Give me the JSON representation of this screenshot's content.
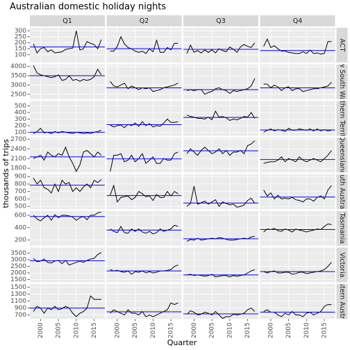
{
  "chart_data": {
    "type": "line",
    "title": "Australian domestic holiday nights",
    "xlabel": "Quarter",
    "ylabel": "thousands of trips",
    "line_color": "#000000",
    "mean_color": "#0000ff",
    "grid": true,
    "columns": [
      "Q1",
      "Q2",
      "Q3",
      "Q4"
    ],
    "x": [
      1998,
      1999,
      2000,
      2001,
      2002,
      2003,
      2004,
      2005,
      2006,
      2007,
      2008,
      2009,
      2010,
      2011,
      2012,
      2013,
      2014,
      2015,
      2016,
      2017
    ],
    "xlim": [
      1997,
      2018
    ],
    "xticks": [
      2000,
      2005,
      2010,
      2015
    ],
    "rows": [
      {
        "name": "ACT",
        "ylim": [
          35,
          325
        ],
        "yticks": [
          100,
          150,
          200,
          250,
          300
        ],
        "panels": [
          {
            "mean": 165,
            "values": [
              190,
              115,
              150,
              160,
              125,
              140,
              115,
              120,
              125,
              145,
              150,
              155,
              300,
              140,
              150,
              210,
              195,
              185,
              150,
              225
            ]
          },
          {
            "mean": 150,
            "values": [
              130,
              130,
              170,
              250,
              190,
              160,
              150,
              130,
              120,
              130,
              110,
              150,
              125,
              220,
              120,
              120,
              160,
              140,
              195,
              195
            ]
          },
          {
            "mean": 145,
            "values": [
              110,
              180,
              120,
              135,
              115,
              140,
              120,
              140,
              115,
              150,
              135,
              125,
              165,
              145,
              120,
              165,
              185,
              170,
              160,
              200
            ]
          },
          {
            "mean": 135,
            "values": [
              170,
              230,
              160,
              175,
              150,
              130,
              130,
              120,
              115,
              110,
              110,
              125,
              110,
              140,
              110,
              115,
              105,
              110,
              210,
              210
            ]
          }
        ]
      },
      {
        "name": "New South Wales",
        "ylim": [
          2240,
          4110
        ],
        "yticks": [
          2500,
          3000,
          3500,
          4000
        ],
        "panels": [
          {
            "mean": 3500,
            "values": [
              4050,
              3650,
              3550,
              3500,
              3450,
              3400,
              3450,
              3550,
              3250,
              3300,
              3500,
              3250,
              3300,
              3200,
              3300,
              3250,
              3300,
              3450,
              3850,
              3550
            ]
          },
          {
            "mean": 2850,
            "values": [
              3200,
              2950,
              2900,
              3000,
              3100,
              2800,
              2950,
              2850,
              2750,
              2850,
              2800,
              2850,
              2650,
              2700,
              2750,
              2850,
              2900,
              2950,
              3000,
              3100
            ]
          },
          {
            "mean": 2750,
            "values": [
              2700,
              2750,
              2700,
              2750,
              2750,
              2500,
              2600,
              2650,
              2800,
              2850,
              2750,
              2700,
              2550,
              2700,
              2650,
              2700,
              2750,
              2800,
              2950,
              3350
            ]
          },
          {
            "mean": 2850,
            "values": [
              3050,
              3050,
              2850,
              3000,
              2900,
              2700,
              2850,
              2900,
              2700,
              2800,
              2800,
              2650,
              2700,
              2750,
              2800,
              2800,
              2850,
              2900,
              2950,
              3150
            ]
          }
        ]
      },
      {
        "name": "Northern Territory",
        "ylim": [
          46,
          575
        ],
        "yticks": [
          100,
          200,
          300,
          400,
          500
        ],
        "panels": [
          {
            "mean": 100,
            "values": [
              80,
              110,
              160,
              90,
              100,
              80,
              110,
              90,
              110,
              100,
              90,
              80,
              100,
              90,
              80,
              90,
              80,
              100,
              110,
              130
            ]
          },
          {
            "mean": 215,
            "values": [
              210,
              180,
              200,
              210,
              170,
              220,
              200,
              240,
              190,
              260,
              200,
              230,
              180,
              200,
              190,
              240,
              300,
              250,
              250,
              260
            ]
          },
          {
            "mean": 325,
            "values": [
              360,
              340,
              330,
              310,
              310,
              300,
              330,
              290,
              420,
              330,
              340,
              320,
              280,
              300,
              290,
              310,
              340,
              330,
              400,
              310
            ]
          },
          {
            "mean": 135,
            "values": [
              100,
              130,
              150,
              120,
              140,
              130,
              110,
              160,
              130,
              130,
              150,
              140,
              130,
              150,
              120,
              150,
              120,
              140,
              120,
              130
            ]
          }
        ]
      },
      {
        "name": "Queensland",
        "ylim": [
          1670,
          2745
        ],
        "yticks": [
          1800,
          2100,
          2400,
          2700
        ],
        "panels": [
          {
            "mean": 2150,
            "values": [
              2100,
              2150,
              2200,
              2050,
              2300,
              2200,
              2150,
              2250,
              2200,
              2450,
              2150,
              1950,
              1700,
              1900,
              2300,
              2350,
              2250,
              2150,
              2300,
              2200
            ]
          },
          {
            "mean": 2090,
            "values": [
              1700,
              2200,
              2200,
              2250,
              2000,
              2050,
              2200,
              2000,
              2100,
              2250,
              1950,
              2050,
              2150,
              1950,
              1950,
              2100,
              2050,
              2050,
              2250,
              2300
            ]
          },
          {
            "mean": 2340,
            "values": [
              2250,
              2400,
              2300,
              2200,
              2350,
              2450,
              2350,
              2250,
              2300,
              2400,
              2250,
              2350,
              2200,
              2300,
              2300,
              2350,
              2250,
              2500,
              2550,
              2650
            ]
          },
          {
            "mean": 2070,
            "values": [
              1950,
              1980,
              2000,
              2000,
              2050,
              2150,
              2000,
              2100,
              2050,
              2000,
              2150,
              2050,
              2000,
              2050,
              2100,
              2050,
              2000,
              2100,
              2200,
              2350
            ]
          }
        ]
      },
      {
        "name": "South Australia",
        "ylim": [
          465,
          930
        ],
        "yticks": [
          500,
          600,
          700,
          800,
          900
        ],
        "panels": [
          {
            "mean": 785,
            "values": [
              880,
              800,
              850,
              750,
              730,
              680,
              800,
              700,
              850,
              800,
              820,
              700,
              750,
              700,
              760,
              800,
              750,
              850,
              820,
              860
            ]
          },
          {
            "mean": 645,
            "values": [
              650,
              780,
              560,
              620,
              630,
              640,
              590,
              620,
              700,
              670,
              630,
              640,
              580,
              660,
              620,
              620,
              700,
              640,
              700,
              670
            ]
          },
          {
            "mean": 545,
            "values": [
              500,
              540,
              770,
              530,
              550,
              570,
              530,
              560,
              590,
              500,
              560,
              540,
              520,
              530,
              490,
              500,
              520,
              580,
              610,
              540
            ]
          },
          {
            "mean": 625,
            "values": [
              720,
              640,
              680,
              600,
              650,
              600,
              610,
              600,
              620,
              590,
              580,
              560,
              600,
              600,
              570,
              620,
              640,
              600,
              720,
              780
            ]
          }
        ]
      },
      {
        "name": "Tasmania",
        "ylim": [
          110,
          670
        ],
        "yticks": [
          200,
          400,
          600
        ],
        "panels": [
          {
            "mean": 580,
            "values": [
              600,
              540,
              510,
              560,
              600,
              520,
              610,
              560,
              600,
              600,
              590,
              570,
              520,
              560,
              580,
              530,
              600,
              600,
              640,
              650
            ]
          },
          {
            "mean": 360,
            "values": [
              380,
              340,
              320,
              420,
              320,
              310,
              380,
              340,
              380,
              330,
              310,
              340,
              300,
              320,
              380,
              340,
              360,
              380,
              440,
              420
            ]
          },
          {
            "mean": 220,
            "values": [
              180,
              210,
              200,
              230,
              200,
              210,
              220,
              230,
              220,
              240,
              230,
              210,
              200,
              200,
              210,
              220,
              230,
              220,
              250,
              260
            ]
          },
          {
            "mean": 370,
            "values": [
              330,
              380,
              370,
              390,
              350,
              340,
              380,
              360,
              330,
              380,
              360,
              350,
              330,
              350,
              360,
              380,
              370,
              420,
              460,
              450
            ]
          }
        ]
      },
      {
        "name": "Victoria",
        "ylim": [
          1290,
          3920
        ],
        "yticks": [
          1500,
          2000,
          2500,
          3000,
          3500
        ],
        "panels": [
          {
            "mean": 2920,
            "values": [
              3100,
              2850,
              2900,
              3050,
              2800,
              2750,
              2900,
              2950,
              2700,
              2950,
              2600,
              2700,
              2800,
              2900,
              2800,
              2950,
              3050,
              3100,
              3400,
              3550
            ]
          },
          {
            "mean": 2150,
            "values": [
              2250,
              2150,
              2200,
              2100,
              2050,
              2150,
              1900,
              2100,
              2050,
              2150,
              2000,
              2100,
              2000,
              2050,
              2150,
              2150,
              2200,
              2250,
              2500,
              2600
            ]
          },
          {
            "mean": 1850,
            "values": [
              1850,
              1900,
              1800,
              1850,
              1800,
              1750,
              1800,
              1900,
              1700,
              1750,
              1800,
              1800,
              1700,
              1800,
              1750,
              1800,
              1850,
              2000,
              2150,
              2250
            ]
          },
          {
            "mean": 2100,
            "values": [
              2100,
              2000,
              2100,
              2150,
              2000,
              2000,
              2050,
              2050,
              1900,
              1950,
              2050,
              2050,
              1950,
              2000,
              2050,
              2100,
              2150,
              2250,
              2500,
              2800
            ]
          }
        ]
      },
      {
        "name": "Western Australia",
        "ylim": [
          585,
          1590
        ],
        "yticks": [
          700,
          900,
          1100,
          1300,
          1500
        ],
        "panels": [
          {
            "mean": 900,
            "values": [
              800,
              950,
              900,
              750,
              900,
              850,
              950,
              850,
              880,
              950,
              900,
              750,
              650,
              750,
              800,
              900,
              1250,
              1150,
              1150,
              1150
            ]
          },
          {
            "mean": 790,
            "values": [
              750,
              850,
              800,
              750,
              700,
              850,
              750,
              750,
              700,
              800,
              650,
              700,
              650,
              700,
              750,
              800,
              850,
              1050,
              1000,
              1050
            ]
          },
          {
            "mean": 730,
            "values": [
              720,
              820,
              780,
              700,
              720,
              780,
              750,
              700,
              800,
              700,
              600,
              650,
              650,
              720,
              700,
              720,
              750,
              850,
              900,
              800
            ]
          },
          {
            "mean": 780,
            "values": [
              800,
              850,
              780,
              780,
              700,
              650,
              750,
              700,
              800,
              700,
              700,
              650,
              750,
              780,
              700,
              750,
              800,
              950,
              1000,
              1000
            ]
          }
        ]
      }
    ]
  }
}
